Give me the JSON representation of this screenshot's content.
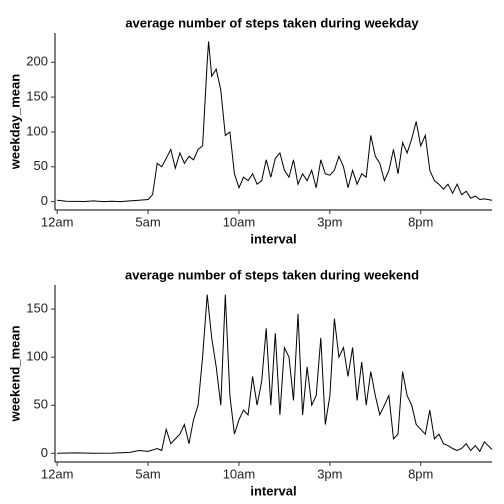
{
  "chart_data": [
    {
      "type": "line",
      "title": "average number of steps taken during weekday",
      "x_label": "interval",
      "y_label": "weekday_mean",
      "x": [
        0,
        0.5,
        1,
        1.5,
        2,
        2.5,
        3,
        3.5,
        4,
        4.5,
        5,
        5.25,
        5.5,
        5.75,
        6,
        6.25,
        6.5,
        6.75,
        7,
        7.25,
        7.5,
        7.75,
        8,
        8.25,
        8.33,
        8.5,
        8.75,
        9,
        9.25,
        9.5,
        9.75,
        10,
        10.25,
        10.5,
        10.75,
        11,
        11.25,
        11.5,
        11.75,
        12,
        12.25,
        12.5,
        12.75,
        13,
        13.25,
        13.5,
        13.75,
        14,
        14.25,
        14.5,
        14.75,
        15,
        15.25,
        15.5,
        15.75,
        16,
        16.25,
        16.5,
        16.75,
        17,
        17.25,
        17.5,
        17.75,
        18,
        18.25,
        18.5,
        18.75,
        19,
        19.25,
        19.5,
        19.75,
        20,
        20.25,
        20.5,
        20.75,
        21,
        21.25,
        21.5,
        21.75,
        22,
        22.25,
        22.5,
        22.75,
        23,
        23.25,
        23.5,
        23.92
      ],
      "series": [
        {
          "name": "weekday_mean",
          "color": "#000000",
          "values": [
            2,
            0.5,
            0.3,
            0.2,
            1,
            0,
            0.5,
            0,
            1,
            2,
            3,
            10,
            55,
            50,
            62,
            75,
            48,
            70,
            55,
            65,
            60,
            75,
            80,
            200,
            230,
            180,
            190,
            160,
            95,
            100,
            40,
            20,
            35,
            30,
            40,
            25,
            30,
            60,
            35,
            62,
            70,
            45,
            35,
            60,
            25,
            40,
            30,
            45,
            20,
            60,
            40,
            38,
            45,
            65,
            50,
            20,
            45,
            25,
            40,
            35,
            95,
            65,
            55,
            30,
            45,
            75,
            40,
            85,
            70,
            90,
            115,
            80,
            95,
            45,
            30,
            25,
            18,
            25,
            12,
            25,
            10,
            15,
            5,
            8,
            3,
            4,
            2
          ]
        }
      ],
      "xlim": [
        -0.12,
        23.92
      ],
      "xticks": [
        {
          "value": 0,
          "label": "12am"
        },
        {
          "value": 5,
          "label": "5am"
        },
        {
          "value": 10,
          "label": "10am"
        },
        {
          "value": 15,
          "label": "3pm"
        },
        {
          "value": 20,
          "label": "8pm"
        }
      ],
      "ylim": [
        -12,
        242
      ],
      "yticks": [
        0,
        50,
        100,
        150,
        200
      ]
    },
    {
      "type": "line",
      "title": "average number of steps taken during weekend",
      "x_label": "interval",
      "y_label": "weekend_mean",
      "x": [
        0,
        1,
        2,
        3,
        4,
        4.5,
        5,
        5.5,
        5.75,
        6,
        6.25,
        6.5,
        6.75,
        7,
        7.25,
        7.5,
        7.75,
        8,
        8.25,
        8.5,
        8.75,
        9,
        9.25,
        9.5,
        9.75,
        10,
        10.25,
        10.5,
        10.75,
        11,
        11.25,
        11.5,
        11.75,
        12,
        12.25,
        12.5,
        12.75,
        13,
        13.25,
        13.5,
        13.75,
        14,
        14.25,
        14.5,
        14.75,
        15,
        15.25,
        15.5,
        15.75,
        16,
        16.25,
        16.5,
        16.75,
        17,
        17.25,
        17.5,
        17.75,
        18,
        18.25,
        18.5,
        18.75,
        19,
        19.25,
        19.5,
        19.75,
        20,
        20.25,
        20.5,
        20.75,
        21,
        21.25,
        21.5,
        21.75,
        22,
        22.25,
        22.5,
        22.75,
        23,
        23.25,
        23.5,
        23.92
      ],
      "series": [
        {
          "name": "weekend_mean",
          "color": "#000000",
          "values": [
            0,
            0.5,
            0,
            0.3,
            1,
            3,
            2,
            5,
            3,
            25,
            10,
            15,
            20,
            30,
            10,
            35,
            50,
            100,
            165,
            120,
            90,
            50,
            165,
            60,
            20,
            35,
            45,
            40,
            80,
            50,
            75,
            130,
            50,
            125,
            40,
            110,
            100,
            55,
            145,
            40,
            90,
            50,
            60,
            120,
            30,
            60,
            140,
            100,
            110,
            80,
            110,
            55,
            95,
            50,
            85,
            60,
            40,
            50,
            60,
            15,
            20,
            85,
            60,
            50,
            30,
            25,
            20,
            45,
            15,
            20,
            10,
            8,
            5,
            3,
            5,
            10,
            3,
            8,
            2,
            12,
            4
          ]
        }
      ],
      "xlim": [
        -0.12,
        23.92
      ],
      "xticks": [
        {
          "value": 0,
          "label": "12am"
        },
        {
          "value": 5,
          "label": "5am"
        },
        {
          "value": 10,
          "label": "10am"
        },
        {
          "value": 15,
          "label": "3pm"
        },
        {
          "value": 20,
          "label": "8pm"
        }
      ],
      "ylim": [
        -9,
        175
      ],
      "yticks": [
        0,
        50,
        100,
        150
      ]
    }
  ]
}
